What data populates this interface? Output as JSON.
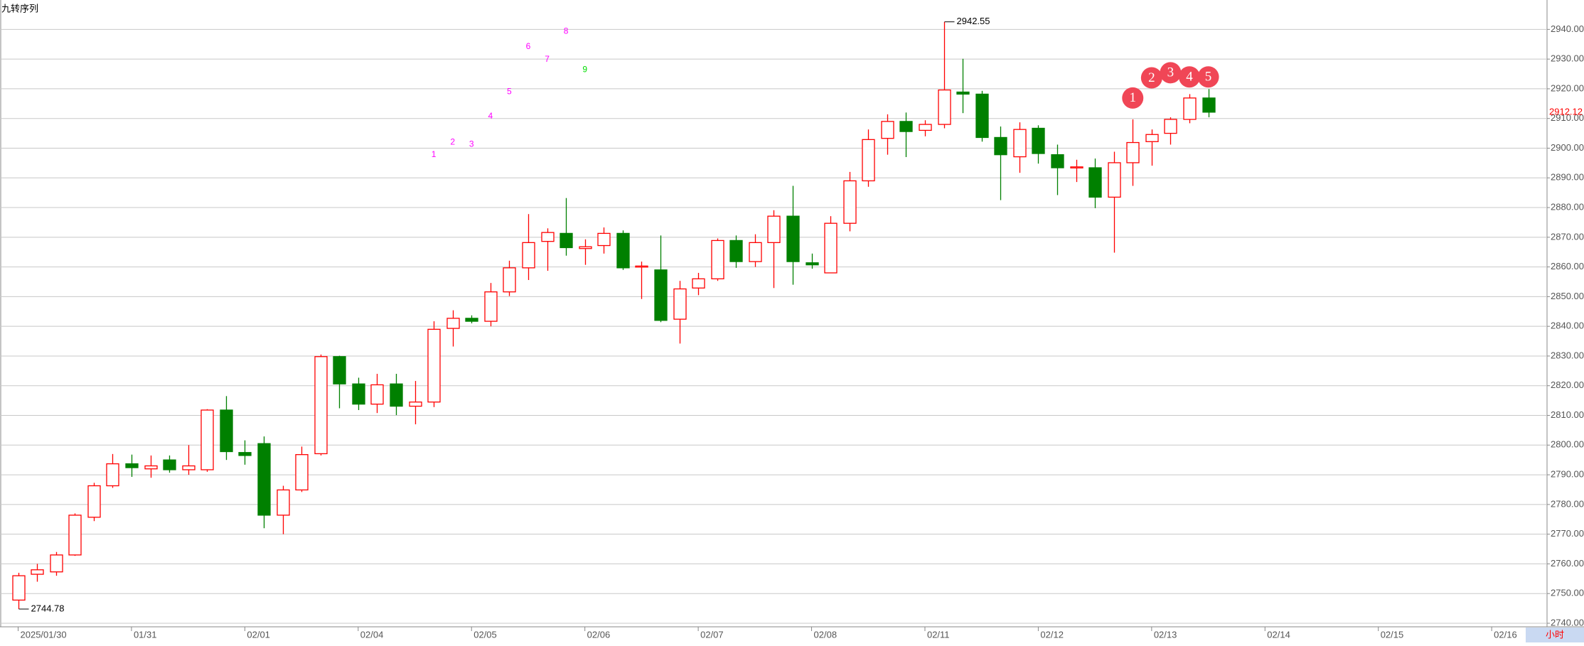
{
  "chart_data": {
    "type": "candlestick",
    "indicator_name": "九转序列",
    "timeframe": "小时",
    "up_color": "#ff0000",
    "down_color": "#008000",
    "grid": true,
    "open": [
      2747.8,
      2756.5,
      2757.3,
      2763,
      2775.7,
      2786.3,
      2793.7,
      2792,
      2795,
      2791.7,
      2791.7,
      2811.8,
      2797.5,
      2800.5,
      2776.4,
      2784.9,
      2797.1,
      2829.8,
      2820.6,
      2813.8,
      2820.6,
      2813.1,
      2814.5,
      2839.3,
      2842.7,
      2841.7,
      2851.6,
      2859.7,
      2868.6,
      2871.3,
      2866.2,
      2867.2,
      2871.3,
      2860,
      2859,
      2842.4,
      2852.9,
      2856,
      2868.9,
      2861.8,
      2868.2,
      2877.1,
      2861.4,
      2858,
      2874.7,
      2889,
      2903.3,
      2909,
      2906,
      2908,
      2918.9,
      2918.2,
      2903.6,
      2897.1,
      2906.7,
      2897.8,
      2893.4,
      2893.4,
      2883.5,
      2895.1,
      2902.2,
      2905,
      2909.7,
      2916.9
    ],
    "high": [
      2757,
      2760,
      2764,
      2777,
      2787.3,
      2797,
      2796.8,
      2796.5,
      2796.5,
      2800,
      2812.1,
      2816.5,
      2801.6,
      2802.9,
      2786.3,
      2799.5,
      2830.5,
      2830.1,
      2822.7,
      2824,
      2824,
      2821.6,
      2841.7,
      2845.4,
      2843.7,
      2854.6,
      2862.1,
      2877.8,
      2873,
      2883.2,
      2869.3,
      2873.3,
      2872.3,
      2861.8,
      2870.6,
      2855.3,
      2858,
      2869.6,
      2870.6,
      2871,
      2879.1,
      2887.3,
      2864.5,
      2877.1,
      2892,
      2906.3,
      2911.4,
      2912,
      2909.4,
      2942.55,
      2930.1,
      2919.3,
      2907.3,
      2908.7,
      2907.7,
      2901.2,
      2896.1,
      2896.5,
      2898.8,
      2909.7,
      2906.3,
      2910.4,
      2918.2,
      2919.9
    ],
    "low": [
      2744.78,
      2754,
      2756,
      2762.7,
      2774.4,
      2785.6,
      2789.3,
      2789,
      2790.7,
      2790,
      2791,
      2795,
      2793.4,
      2772,
      2770,
      2784.2,
      2796.5,
      2812.4,
      2811.8,
      2810.8,
      2810.1,
      2807,
      2812.8,
      2833.2,
      2841,
      2840,
      2850.2,
      2855.6,
      2858.7,
      2863.8,
      2860.7,
      2864.5,
      2859,
      2849.2,
      2841.4,
      2834.2,
      2850.5,
      2855.3,
      2859.7,
      2860,
      2852.9,
      2854,
      2859.4,
      2858,
      2872,
      2887,
      2897.8,
      2897,
      2904,
      2906.7,
      2911.8,
      2902.2,
      2882.5,
      2891.7,
      2894.8,
      2884.2,
      2888.6,
      2879.8,
      2864.8,
      2887.3,
      2894.1,
      2901.2,
      2908.4,
      2910.4
    ],
    "close": [
      2756,
      2758,
      2763,
      2776.4,
      2786.3,
      2793.7,
      2792.4,
      2793,
      2791.7,
      2793,
      2811.8,
      2797.8,
      2796.5,
      2776.4,
      2784.9,
      2796.8,
      2829.8,
      2820.6,
      2813.8,
      2820.3,
      2813.1,
      2814.5,
      2839,
      2842.7,
      2841.7,
      2851.6,
      2859.7,
      2868.2,
      2871.6,
      2866.5,
      2866.8,
      2871.3,
      2859.7,
      2860.3,
      2842,
      2852.6,
      2856,
      2868.9,
      2861.8,
      2868.2,
      2877.1,
      2861.8,
      2860.7,
      2874.7,
      2889,
      2902.9,
      2909,
      2905.6,
      2908,
      2919.6,
      2918.2,
      2903.6,
      2897.8,
      2906.3,
      2898.2,
      2893.4,
      2893.7,
      2883.5,
      2895.1,
      2901.9,
      2904.6,
      2909.7,
      2916.9,
      2912.12
    ],
    "xlim": [
      -0.96,
      80.93
    ],
    "xticks": [
      {
        "value": 0,
        "label": "2025/01/30"
      },
      {
        "value": 6,
        "label": "01/31"
      },
      {
        "value": 12,
        "label": "02/01"
      },
      {
        "value": 18,
        "label": "02/04"
      },
      {
        "value": 24,
        "label": "02/05"
      },
      {
        "value": 30,
        "label": "02/06"
      },
      {
        "value": 36,
        "label": "02/07"
      },
      {
        "value": 42,
        "label": "02/08"
      },
      {
        "value": 48,
        "label": "02/11"
      },
      {
        "value": 54,
        "label": "02/12"
      },
      {
        "value": 60,
        "label": "02/13"
      },
      {
        "value": 66,
        "label": "02/14"
      },
      {
        "value": 72,
        "label": "02/15"
      },
      {
        "value": 78,
        "label": "02/16"
      }
    ],
    "ylim": [
      2738.8,
      2949.9
    ],
    "yticks": [
      {
        "value": 2740,
        "label": "2740.00"
      },
      {
        "value": 2750,
        "label": "2750.00"
      },
      {
        "value": 2760,
        "label": "2760.00"
      },
      {
        "value": 2770,
        "label": "2770.00"
      },
      {
        "value": 2780,
        "label": "2780.00"
      },
      {
        "value": 2790,
        "label": "2790.00"
      },
      {
        "value": 2800,
        "label": "2800.00"
      },
      {
        "value": 2810,
        "label": "2810.00"
      },
      {
        "value": 2820,
        "label": "2820.00"
      },
      {
        "value": 2830,
        "label": "2830.00"
      },
      {
        "value": 2840,
        "label": "2840.00"
      },
      {
        "value": 2850,
        "label": "2850.00"
      },
      {
        "value": 2860,
        "label": "2860.00"
      },
      {
        "value": 2870,
        "label": "2870.00"
      },
      {
        "value": 2880,
        "label": "2880.00"
      },
      {
        "value": 2890,
        "label": "2890.00"
      },
      {
        "value": 2900,
        "label": "2900.00"
      },
      {
        "value": 2910,
        "label": "2910.00"
      },
      {
        "value": 2920,
        "label": "2920.00"
      },
      {
        "value": 2930,
        "label": "2930.00"
      },
      {
        "value": 2940,
        "label": "2940.00"
      }
    ],
    "setup_markers": [
      {
        "index": 22,
        "count": 1,
        "y": 2897.8,
        "color": "#ff00ff"
      },
      {
        "index": 23,
        "count": 2,
        "y": 2901.9,
        "color": "#ff00ff"
      },
      {
        "index": 24,
        "count": 3,
        "y": 2901.2,
        "color": "#ff00ff"
      },
      {
        "index": 25,
        "count": 4,
        "y": 2910.7,
        "color": "#ff00ff"
      },
      {
        "index": 26,
        "count": 5,
        "y": 2918.9,
        "color": "#ff00ff"
      },
      {
        "index": 27,
        "count": 6,
        "y": 2934.2,
        "color": "#ff00ff"
      },
      {
        "index": 28,
        "count": 7,
        "y": 2929.8,
        "color": "#ff00ff"
      },
      {
        "index": 29,
        "count": 8,
        "y": 2939.3,
        "color": "#ff00ff"
      },
      {
        "index": 30,
        "count": 9,
        "y": 2926.4,
        "color": "#00dd00"
      }
    ],
    "count_markers": [
      {
        "index": 59,
        "count": 1,
        "y": 2916.9,
        "color": "#f04656"
      },
      {
        "index": 60,
        "count": 2,
        "y": 2923.7,
        "color": "#f04656"
      },
      {
        "index": 61,
        "count": 3,
        "y": 2925.4,
        "color": "#f04656"
      },
      {
        "index": 62,
        "count": 4,
        "y": 2924,
        "color": "#f04656"
      },
      {
        "index": 63,
        "count": 5,
        "y": 2924,
        "color": "#f04656"
      }
    ]
  }
}
